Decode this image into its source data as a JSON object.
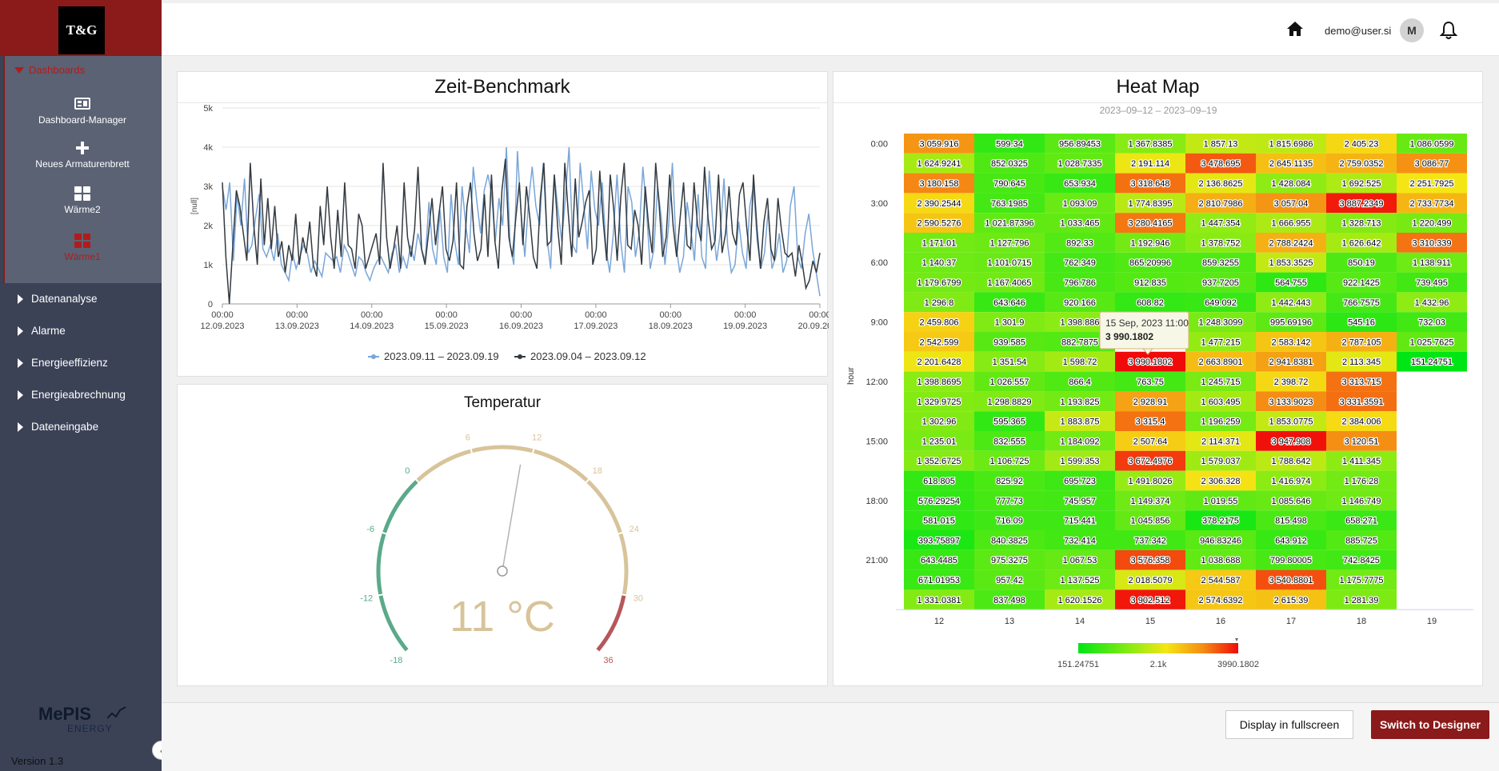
{
  "sidebar": {
    "logo": "T&G",
    "section_label": "Dashboards",
    "dashboard_items": [
      {
        "label": "Dashboard-Manager",
        "icon": "dashboard-manager-icon"
      },
      {
        "label": "Neues Armaturenbrett",
        "icon": "plus-icon"
      },
      {
        "label": "Wärme2",
        "icon": "grid-icon"
      },
      {
        "label": "Wärme1",
        "icon": "grid-icon",
        "active": true
      }
    ],
    "nav_items": [
      "Datenanalyse",
      "Alarme",
      "Energieeffizienz",
      "Energieabrechnung",
      "Dateneingabe"
    ],
    "brand": "MePIS",
    "brand_sub": "ENERGY",
    "version": "Version 1.3",
    "accent_color": "#8b1a1a"
  },
  "topbar": {
    "user_email": "demo@user.si",
    "avatar_initial": "M"
  },
  "benchmark": {
    "title": "Zeit-Benchmark",
    "chart_data": {
      "type": "line",
      "ylabel": "[null]",
      "ylim": [
        0,
        5000
      ],
      "yticks": [
        "0",
        "1k",
        "2k",
        "3k",
        "4k",
        "5k"
      ],
      "xticks": [
        [
          "00:00",
          "12.09.2023"
        ],
        [
          "00:00",
          "13.09.2023"
        ],
        [
          "00:00",
          "14.09.2023"
        ],
        [
          "00:00",
          "15.09.2023"
        ],
        [
          "00:00",
          "16.09.2023"
        ],
        [
          "00:00",
          "17.09.2023"
        ],
        [
          "00:00",
          "18.09.2023"
        ],
        [
          "00:00",
          "19.09.2023"
        ],
        [
          "00:00",
          "20.09.2023"
        ]
      ],
      "series": [
        {
          "name": "2023.09.11 – 2023.09.19",
          "color": "#7aa6d8",
          "values": [
            3000,
            2400,
            3100,
            1100,
            2800,
            2000,
            3200,
            1300,
            1500,
            2200,
            2800,
            1400,
            1200,
            1500,
            1100,
            1800,
            1000,
            800,
            600,
            1300,
            900,
            1200,
            1500,
            1300,
            800,
            1100,
            900,
            700,
            1300,
            1200,
            1100,
            1200,
            800,
            1500,
            1300,
            1000,
            700,
            1200,
            1100,
            800,
            600,
            900,
            1100,
            1200,
            1000,
            800,
            1300,
            1500,
            800,
            1200,
            900,
            1500,
            1100,
            1800,
            1400,
            1100,
            2600,
            1400,
            1000,
            2400,
            1200,
            800,
            2800,
            1600,
            1000,
            3000,
            2000,
            1300,
            3500,
            2600,
            1800,
            2900,
            3300,
            2800,
            1600,
            2700,
            2000,
            4000,
            1500,
            1000,
            3900,
            2300,
            1200,
            2600,
            3500,
            2500,
            2000,
            3600,
            1700,
            900,
            3300,
            2400,
            1600,
            2700,
            4000,
            1500,
            1300,
            3600,
            2500,
            1400,
            3400,
            2400,
            2000,
            3100,
            1400,
            800,
            1800,
            3300,
            1600,
            800,
            3000,
            2600,
            1200,
            1800,
            3500,
            2400,
            900,
            1400,
            3000,
            2200,
            1000,
            2000,
            3600,
            1500,
            800,
            1200,
            2600,
            1900,
            1100,
            2800,
            1200,
            900,
            3400,
            2000,
            1100,
            1800,
            3200,
            1500,
            800,
            1000,
            2100,
            1300,
            900,
            2500,
            3000,
            1600,
            900,
            1300,
            2400,
            900,
            1200,
            1800,
            800,
            1100,
            2500,
            3000,
            1200,
            900,
            1800,
            2300,
            1400,
            800,
            200
          ]
        },
        {
          "name": "2023.09.04 – 2023.09.12",
          "color": "#333a40",
          "values": [
            3100,
            1200,
            0,
            1500,
            2900,
            2500,
            1800,
            1100,
            3600,
            2000,
            1000,
            3200,
            1500,
            2700,
            1400,
            2500,
            1200,
            1600,
            800,
            1500,
            1100,
            2300,
            1000,
            1700,
            1300,
            2100,
            1000,
            700,
            2500,
            1500,
            3000,
            1700,
            900,
            2400,
            1200,
            3100,
            1500,
            1400,
            900,
            2300,
            2000,
            900,
            1200,
            1500,
            1800,
            1000,
            3600,
            1700,
            900,
            1400,
            2000,
            900,
            3100,
            1700,
            1200,
            1900,
            3500,
            1400,
            1000,
            1800,
            2700,
            1500,
            2300,
            3000,
            1400,
            1100,
            1600,
            3100,
            1000,
            900,
            2500,
            3100,
            1800,
            1100,
            1400,
            2800,
            1200,
            3300,
            1600,
            900,
            2900,
            3700,
            1700,
            1200,
            2200,
            3100,
            1500,
            3000,
            2200,
            1200,
            900,
            2700,
            3600,
            1500,
            1600,
            3300,
            1900,
            1000,
            3600,
            2300,
            1200,
            3200,
            1700,
            2100,
            2600,
            2900,
            1000,
            1400,
            3400,
            2100,
            1100,
            3300,
            2400,
            1100,
            2700,
            3600,
            1500,
            1400,
            2400,
            2000,
            1000,
            3000,
            2000,
            1300,
            3600,
            2500,
            1200,
            1700,
            3300,
            2000,
            1200,
            2200,
            3100,
            1500,
            1400,
            3100,
            2000,
            1600,
            3500,
            2200,
            1400,
            1600,
            3300,
            1300,
            1800,
            3000,
            1800,
            1500,
            2800,
            3100,
            2000,
            1100,
            3300,
            1900,
            900,
            2100,
            2700,
            1400,
            1100,
            2700,
            1900,
            1300,
            1200,
            1300,
            700,
            1500,
            1000,
            400,
            600,
            1100,
            800,
            1300
          ]
        }
      ]
    }
  },
  "temperature": {
    "title": "Temperatur",
    "value": 11,
    "unit": "°C",
    "display": "11 °C",
    "min": -18,
    "max": 36,
    "ticks": [
      "-18",
      "-12",
      "-6",
      "0",
      "6",
      "12",
      "18",
      "24",
      "30",
      "36"
    ],
    "bands": [
      {
        "from": -18,
        "to": 0,
        "color": "#5aaa8a"
      },
      {
        "from": 0,
        "to": 30,
        "color": "#d8c49a"
      },
      {
        "from": 30,
        "to": 36,
        "color": "#b5585a"
      }
    ]
  },
  "heatmap": {
    "title": "Heat Map",
    "subtitle": "2023–09–12 – 2023–09–19",
    "ylabel": "hour",
    "chart_data": {
      "type": "heatmap",
      "x_categories": [
        "12",
        "13",
        "14",
        "15",
        "16",
        "17",
        "18",
        "19"
      ],
      "y_categories": [
        "0:00",
        "1:00",
        "2:00",
        "3:00",
        "4:00",
        "5:00",
        "6:00",
        "7:00",
        "8:00",
        "9:00",
        "10:00",
        "11:00",
        "12:00",
        "13:00",
        "14:00",
        "15:00",
        "16:00",
        "17:00",
        "18:00",
        "19:00",
        "20:00",
        "21:00",
        "22:00",
        "23:00"
      ],
      "y_tick_labels": [
        "0:00",
        "3:00",
        "6:00",
        "9:00",
        "12:00",
        "15:00",
        "18:00",
        "21:00"
      ],
      "rows": [
        [
          "3 059.916",
          "599.34",
          "956.89453",
          "1 367.8385",
          "1 857.13",
          "1 815.6986",
          "2 405.23",
          "1 086.0599"
        ],
        [
          "1 624.9241",
          "852.0325",
          "1 028.7335",
          "2 191.114",
          "3 478.695",
          "2 645.1135",
          "2 759.0352",
          "3 086.77"
        ],
        [
          "3 180.158",
          "790.645",
          "653.934",
          "3 318.648",
          "2 136.8625",
          "1 428.084",
          "1 692.525",
          "2 251.7925"
        ],
        [
          "2 390.2544",
          "763.1985",
          "1 093.09",
          "1 774.8395",
          "2 810.7986",
          "3 057.04",
          "3 887.2349",
          "2 733.7734"
        ],
        [
          "2 590.5276",
          "1 021.87396",
          "1 033.465",
          "3 280.4165",
          "1 447.354",
          "1 666.955",
          "1 328.713",
          "1 220.499"
        ],
        [
          "1 171.01",
          "1 127.796",
          "892.33",
          "1 192.946",
          "1 378.752",
          "2 788.2424",
          "1 626.642",
          "3 310.339"
        ],
        [
          "1 140.37",
          "1 101.0715",
          "762.349",
          "865.20996",
          "859.3255",
          "1 853.3525",
          "850.19",
          "1 138.911"
        ],
        [
          "1 179.6799",
          "1 167.4065",
          "796.786",
          "912.835",
          "937.7205",
          "564.755",
          "922.1425",
          "739.495"
        ],
        [
          "1 296.8",
          "643.646",
          "920.166",
          "608.82",
          "649.092",
          "1 442.443",
          "766.7575",
          "1 432.96"
        ],
        [
          "2 459.806",
          "1 301.9",
          "1 398.886",
          "",
          "1 248.3099",
          "995.69196",
          "545.16",
          "732.03"
        ],
        [
          "2 542.599",
          "939.585",
          "882.7875",
          "",
          "1 477.215",
          "2 583.142",
          "2 787.105",
          "1 025.7625"
        ],
        [
          "2 201.6428",
          "1 351.54",
          "1 598.72",
          "3 990.1802",
          "2 663.8901",
          "2 941.8381",
          "2 113.345",
          "151.24751"
        ],
        [
          "1 398.8695",
          "1 026.557",
          "866.4",
          "763.75",
          "1 245.715",
          "2 398.72",
          "3 313.715",
          ""
        ],
        [
          "1 329.9725",
          "1 298.8829",
          "1 193.825",
          "2 928.91",
          "1 603.495",
          "3 133.9023",
          "3 331.3591",
          ""
        ],
        [
          "1 302.96",
          "595.365",
          "1 883.875",
          "3 315.4",
          "1 196.259",
          "1 853.0775",
          "2 384.006",
          ""
        ],
        [
          "1 235.01",
          "832.555",
          "1 184.092",
          "2 507.64",
          "2 114.371",
          "3 947.908",
          "3 120.51",
          ""
        ],
        [
          "1 352.6725",
          "1 106.725",
          "1 599.353",
          "3 672.4976",
          "1 579.037",
          "1 788.642",
          "1 411.345",
          ""
        ],
        [
          "618.805",
          "825.92",
          "695.723",
          "1 491.8026",
          "2 306.328",
          "1 416.974",
          "1 176.28",
          ""
        ],
        [
          "576.29254",
          "777.73",
          "745.957",
          "1 149.374",
          "1 019.55",
          "1 085.646",
          "1 146.749",
          ""
        ],
        [
          "581.015",
          "716.09",
          "715.441",
          "1 045.856",
          "378.2175",
          "815.498",
          "658.271",
          ""
        ],
        [
          "393.75897",
          "840.3825",
          "732.414",
          "737.342",
          "946.83246",
          "643.912",
          "885.725",
          ""
        ],
        [
          "643.4485",
          "975.3275",
          "1 067.53",
          "3 576.358",
          "1 038.688",
          "799.80005",
          "742.8425",
          ""
        ],
        [
          "671.01953",
          "957.42",
          "1 137.525",
          "2 018.5079",
          "2 544.587",
          "3 540.8801",
          "1 175.7775",
          ""
        ],
        [
          "1 331.0381",
          "837.498",
          "1 620.1526",
          "3 902.512",
          "2 574.6392",
          "2 615.39",
          "1 281.39",
          ""
        ]
      ],
      "color_min": 151.24751,
      "color_max": 3990.1802,
      "legend_labels": [
        "151.24751",
        "2.1k",
        "3990.1802"
      ],
      "tooltip": {
        "title": "15 Sep, 2023 11:00",
        "value": "3 990.1802"
      }
    }
  },
  "footer": {
    "fullscreen_label": "Display in fullscreen",
    "designer_label": "Switch to Designer",
    "designer_color": "#8b1a1a"
  }
}
